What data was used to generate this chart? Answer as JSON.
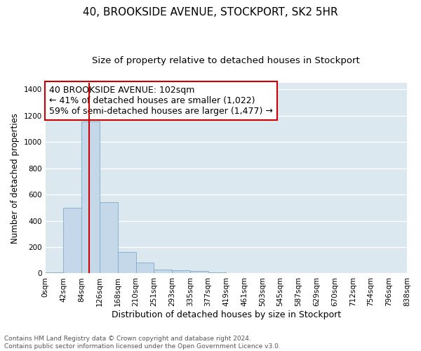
{
  "title": "40, BROOKSIDE AVENUE, STOCKPORT, SK2 5HR",
  "subtitle": "Size of property relative to detached houses in Stockport",
  "xlabel": "Distribution of detached houses by size in Stockport",
  "ylabel": "Number of detached properties",
  "bin_labels": [
    "0sqm",
    "42sqm",
    "84sqm",
    "126sqm",
    "168sqm",
    "210sqm",
    "251sqm",
    "293sqm",
    "335sqm",
    "377sqm",
    "419sqm",
    "461sqm",
    "503sqm",
    "545sqm",
    "587sqm",
    "629sqm",
    "670sqm",
    "712sqm",
    "754sqm",
    "796sqm",
    "838sqm"
  ],
  "bar_heights": [
    10,
    500,
    1155,
    540,
    165,
    82,
    30,
    25,
    20,
    10,
    5,
    5,
    0,
    0,
    0,
    0,
    0,
    0,
    0,
    0
  ],
  "bar_color": "#c5d8ea",
  "bar_edge_color": "#7faac8",
  "vline_x": 2.43,
  "vline_color": "#cc0000",
  "ylim": [
    0,
    1450
  ],
  "yticks": [
    0,
    200,
    400,
    600,
    800,
    1000,
    1200,
    1400
  ],
  "annotation_line1": "40 BROOKSIDE AVENUE: 102sqm",
  "annotation_line2": "← 41% of detached houses are smaller (1,022)",
  "annotation_line3": "59% of semi-detached houses are larger (1,477) →",
  "footnote": "Contains HM Land Registry data © Crown copyright and database right 2024.\nContains public sector information licensed under the Open Government Licence v3.0.",
  "plot_bg": "#dce8f0",
  "fig_bg": "#ffffff",
  "grid_color": "#ffffff",
  "title_fontsize": 11,
  "subtitle_fontsize": 9.5,
  "xlabel_fontsize": 9,
  "ylabel_fontsize": 8.5,
  "tick_fontsize": 7.5,
  "annotation_fontsize": 9,
  "footnote_fontsize": 6.5
}
